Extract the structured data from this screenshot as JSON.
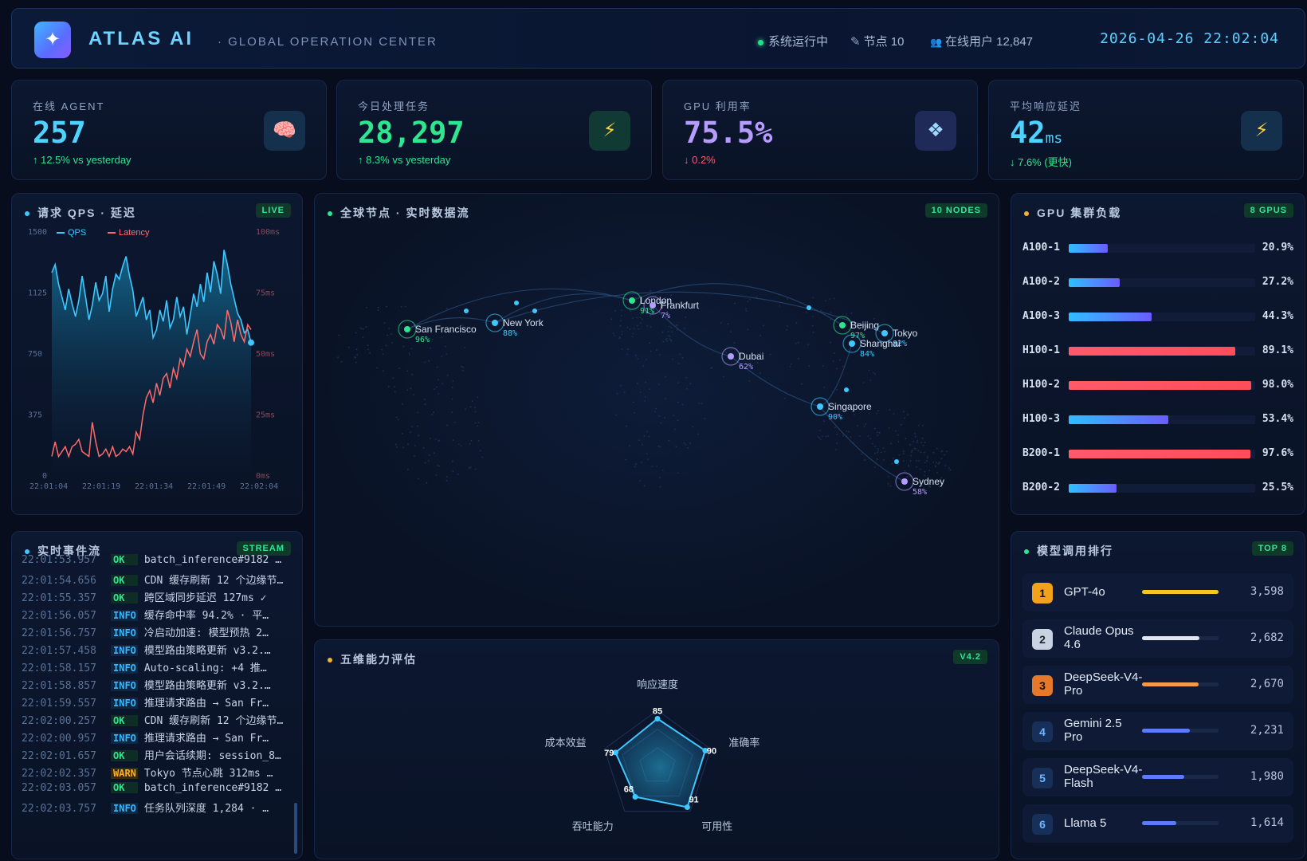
{
  "header": {
    "brand": "ATLAS AI",
    "subtitle": "· GLOBAL OPERATION CENTER",
    "status_running": "系统运行中",
    "nodes": "节点 10",
    "online_users": "在线用户 12,847",
    "clock": "2026-04-26 22:02:04"
  },
  "kpis": [
    {
      "label": "在线 AGENT",
      "value": "257",
      "unit": "",
      "delta": "↑ 12.5% vs yesterday",
      "color": "#4fd2ff",
      "delta_color": "#2ee68f",
      "icon": "brain-icon",
      "icon_glyph": "🧠"
    },
    {
      "label": "今日处理任务",
      "value": "28,297",
      "unit": "",
      "delta": "↑ 8.3% vs yesterday",
      "color": "#2ee68f",
      "delta_color": "#2ee68f",
      "icon": "lightning-icon",
      "icon_glyph": "⚡"
    },
    {
      "label": "GPU 利用率",
      "value": "75.5%",
      "unit": "",
      "delta": "↓ 0.2%",
      "color": "#b69cff",
      "delta_color": "#ff5a6a",
      "icon": "cube-icon",
      "icon_glyph": "❖"
    },
    {
      "label": "平均响应延迟",
      "value": "42",
      "unit": "ms",
      "delta": "↓ 7.6% (更快)",
      "color": "#4fd2ff",
      "delta_color": "#2ee68f",
      "icon": "lightning-icon",
      "icon_glyph": "⚡"
    }
  ],
  "qps_panel": {
    "title": "请求 QPS · 延迟",
    "badge": "LIVE",
    "legend_qps": "QPS",
    "legend_latency": "Latency"
  },
  "chart_data": {
    "type": "line",
    "x_ticks": [
      "22:01:04",
      "22:01:19",
      "22:01:34",
      "22:01:49",
      "22:02:04"
    ],
    "y_left_ticks": [
      "1500",
      "1125",
      "750",
      "375",
      "0"
    ],
    "y_right_ticks": [
      "100ms",
      "75ms",
      "50ms",
      "25ms",
      "0ms"
    ],
    "ylim_left": [
      0,
      1500
    ],
    "ylim_right": [
      0,
      100
    ],
    "series": [
      {
        "name": "QPS",
        "axis": "left",
        "color": "#3ec8ff",
        "values": [
          1250,
          1300,
          1180,
          1100,
          1020,
          1150,
          1060,
          980,
          1080,
          1230,
          1100,
          960,
          1050,
          1190,
          1080,
          1120,
          1230,
          1010,
          1150,
          1240,
          1210,
          1290,
          1350,
          1230,
          1140,
          980,
          1040,
          1100,
          960,
          1020,
          850,
          900,
          1020,
          950,
          1080,
          910,
          960,
          1100,
          980,
          1040,
          870,
          990,
          1120,
          1040,
          1180,
          1070,
          1250,
          1130,
          1320,
          1240,
          1120,
          1390,
          1300,
          1180,
          1090,
          1000,
          960,
          880,
          900,
          820
        ]
      },
      {
        "name": "Latency",
        "axis": "right",
        "color": "#ff6b6b",
        "values": [
          8,
          14,
          8,
          10,
          12,
          8,
          12,
          13,
          15,
          10,
          9,
          8,
          22,
          14,
          8,
          9,
          11,
          8,
          12,
          8,
          9,
          11,
          10,
          12,
          9,
          18,
          15,
          25,
          32,
          35,
          30,
          38,
          33,
          40,
          42,
          36,
          44,
          40,
          48,
          45,
          52,
          49,
          55,
          60,
          50,
          48,
          55,
          58,
          54,
          62,
          60,
          56,
          68,
          63,
          55,
          64,
          58,
          55,
          62,
          60
        ]
      }
    ]
  },
  "map_panel": {
    "title": "全球节点 · 实时数据流",
    "badge": "10 NODES",
    "nodes": [
      {
        "name": "San Francisco",
        "pct": "96%",
        "color": "#2ee68f"
      },
      {
        "name": "New York",
        "pct": "88%",
        "color": "#3ec8ff"
      },
      {
        "name": "London",
        "pct": "91%",
        "color": "#2ee68f"
      },
      {
        "name": "Frankfurt",
        "pct": "7%",
        "color": "#b69cff"
      },
      {
        "name": "Beijing",
        "pct": "97%",
        "color": "#2ee68f"
      },
      {
        "name": "Tokyo",
        "pct": "82%",
        "color": "#3ec8ff"
      },
      {
        "name": "Shanghai",
        "pct": "84%",
        "color": "#3ec8ff"
      },
      {
        "name": "Dubai",
        "pct": "62%",
        "color": "#b69cff"
      },
      {
        "name": "Singapore",
        "pct": "90%",
        "color": "#3ec8ff"
      },
      {
        "name": "Sydney",
        "pct": "58%",
        "color": "#b69cff"
      }
    ]
  },
  "gpu_panel": {
    "title": "GPU 集群负载",
    "badge": "8 GPUS",
    "gpus": [
      {
        "name": "A100-1",
        "pct_label": "20.9%",
        "value": 20.9,
        "hot": false
      },
      {
        "name": "A100-2",
        "pct_label": "27.2%",
        "value": 27.2,
        "hot": false
      },
      {
        "name": "A100-3",
        "pct_label": "44.3%",
        "value": 44.3,
        "hot": false
      },
      {
        "name": "H100-1",
        "pct_label": "89.1%",
        "value": 89.1,
        "hot": true
      },
      {
        "name": "H100-2",
        "pct_label": "98.0%",
        "value": 98.0,
        "hot": true
      },
      {
        "name": "H100-3",
        "pct_label": "53.4%",
        "value": 53.4,
        "hot": false
      },
      {
        "name": "B200-1",
        "pct_label": "97.6%",
        "value": 97.6,
        "hot": true
      },
      {
        "name": "B200-2",
        "pct_label": "25.5%",
        "value": 25.5,
        "hot": false
      }
    ]
  },
  "event_panel": {
    "title": "实时事件流",
    "badge": "STREAM",
    "events": [
      {
        "ts": "22:01:53.957",
        "level": "OK",
        "msg": "batch_inference#9182 …"
      },
      {
        "ts": "22:01:54.656",
        "level": "OK",
        "msg": "CDN 缓存刷新 12 个边缘节…"
      },
      {
        "ts": "22:01:55.357",
        "level": "OK",
        "msg": "跨区域同步延迟 127ms ✓"
      },
      {
        "ts": "22:01:56.057",
        "level": "INFO",
        "msg": "缓存命中率 94.2% · 平…"
      },
      {
        "ts": "22:01:56.757",
        "level": "INFO",
        "msg": "冷启动加速: 模型预热 2…"
      },
      {
        "ts": "22:01:57.458",
        "level": "INFO",
        "msg": "模型路由策略更新 v3.2.…"
      },
      {
        "ts": "22:01:58.157",
        "level": "INFO",
        "msg": "Auto-scaling: +4 推…"
      },
      {
        "ts": "22:01:58.857",
        "level": "INFO",
        "msg": "模型路由策略更新 v3.2.…"
      },
      {
        "ts": "22:01:59.557",
        "level": "INFO",
        "msg": "推理请求路由 → San Fr…"
      },
      {
        "ts": "22:02:00.257",
        "level": "OK",
        "msg": "CDN 缓存刷新 12 个边缘节…"
      },
      {
        "ts": "22:02:00.957",
        "level": "INFO",
        "msg": "推理请求路由 → San Fr…"
      },
      {
        "ts": "22:02:01.657",
        "level": "OK",
        "msg": "用户会话续期: session_8…"
      },
      {
        "ts": "22:02:02.357",
        "level": "WARN",
        "msg": "Tokyo 节点心跳 312ms …"
      },
      {
        "ts": "22:02:03.057",
        "level": "OK",
        "msg": "batch_inference#9182 …"
      },
      {
        "ts": "22:02:03.757",
        "level": "INFO",
        "msg": "任务队列深度 1,284 · …"
      }
    ]
  },
  "radar_panel": {
    "title": "五维能力评估",
    "badge": "V4.2",
    "axes": [
      {
        "name": "响应速度",
        "value": 85
      },
      {
        "name": "准确率",
        "value": 90
      },
      {
        "name": "可用性",
        "value": 91
      },
      {
        "name": "吞吐能力",
        "value": 68
      },
      {
        "name": "成本效益",
        "value": 79
      }
    ]
  },
  "model_panel": {
    "title": "模型调用排行",
    "badge": "TOP 8",
    "models": [
      {
        "rank": "1",
        "name": "GPT-4o",
        "count": "3,598",
        "value": 3598,
        "rank_bg": "#f2a21a",
        "rank_fg": "#1a1206",
        "bar": "#f7c51e"
      },
      {
        "rank": "2",
        "name": "Claude Opus 4.6",
        "count": "2,682",
        "value": 2682,
        "rank_bg": "#c9d2e0",
        "rank_fg": "#1a2232",
        "bar": "#dfe6f2"
      },
      {
        "rank": "3",
        "name": "DeepSeek-V4-Pro",
        "count": "2,670",
        "value": 2670,
        "rank_bg": "#e5782a",
        "rank_fg": "#1e0e04",
        "bar": "#f39a4a"
      },
      {
        "rank": "4",
        "name": "Gemini 2.5 Pro",
        "count": "2,231",
        "value": 2231,
        "rank_bg": "#16305a",
        "rank_fg": "#6fb8ff",
        "bar": "#5b7cff"
      },
      {
        "rank": "5",
        "name": "DeepSeek-V4-Flash",
        "count": "1,980",
        "value": 1980,
        "rank_bg": "#16305a",
        "rank_fg": "#6fb8ff",
        "bar": "#5b7cff"
      },
      {
        "rank": "6",
        "name": "Llama 5",
        "count": "1,614",
        "value": 1614,
        "rank_bg": "#16305a",
        "rank_fg": "#6fb8ff",
        "bar": "#5b7cff"
      }
    ]
  }
}
